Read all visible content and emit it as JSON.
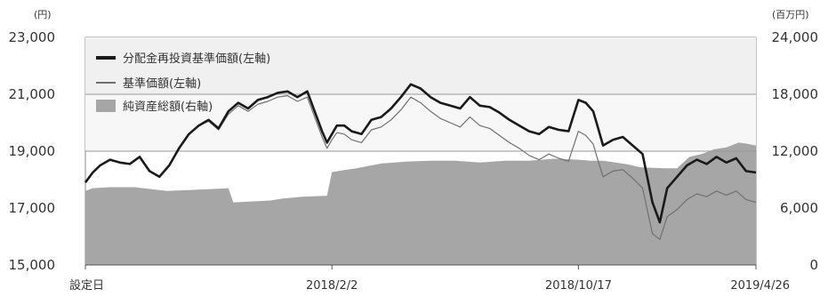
{
  "chart_data": {
    "type": "line",
    "left_axis_unit": "(円)",
    "right_axis_unit": "(百万円)",
    "left_ticks": [
      15000,
      17000,
      19000,
      21000,
      23000
    ],
    "left_tick_labels": [
      "15,000",
      "17,000",
      "19,000",
      "21,000",
      "23,000"
    ],
    "right_ticks": [
      0,
      6000,
      12000,
      18000,
      24000
    ],
    "right_tick_labels": [
      "0",
      "6,000",
      "12,000",
      "18,000",
      "24,000"
    ],
    "ylim_left": [
      15000,
      23000
    ],
    "ylim_right": [
      0,
      24000
    ],
    "x_tick_labels": [
      "設定日",
      "2018/2/2",
      "2018/10/17",
      "2019/4/26"
    ],
    "x_ticks": [
      0,
      100,
      200,
      272
    ],
    "xlim": [
      0,
      272
    ],
    "legend_position": "top-left",
    "series": [
      {
        "name": "分配金再投資基準価額(左軸)",
        "axis": "left",
        "kind": "line",
        "color": "#1a1a1a",
        "x": [
          0,
          3,
          6,
          10,
          14,
          18,
          22,
          26,
          30,
          34,
          38,
          42,
          46,
          50,
          54,
          58,
          62,
          66,
          70,
          74,
          78,
          82,
          86,
          90,
          93,
          96,
          98,
          100,
          102,
          105,
          108,
          112,
          116,
          120,
          124,
          128,
          132,
          136,
          140,
          144,
          148,
          152,
          156,
          160,
          164,
          168,
          172,
          176,
          180,
          184,
          188,
          192,
          196,
          200,
          203,
          206,
          208,
          210,
          214,
          218,
          222,
          226,
          230,
          233,
          236,
          240,
          244,
          248,
          252,
          256,
          260,
          264,
          268,
          272
        ],
        "values": [
          17900,
          18250,
          18500,
          18700,
          18600,
          18550,
          18800,
          18300,
          18100,
          18500,
          19100,
          19600,
          19900,
          20100,
          19800,
          20400,
          20700,
          20500,
          20800,
          20900,
          21050,
          21100,
          20900,
          21100,
          20400,
          19700,
          19300,
          19600,
          19900,
          19900,
          19700,
          19600,
          20100,
          20200,
          20500,
          20900,
          21350,
          21200,
          20900,
          20700,
          20600,
          20500,
          20900,
          20600,
          20550,
          20350,
          20100,
          19900,
          19700,
          19600,
          19850,
          19750,
          19700,
          20800,
          20700,
          20400,
          19800,
          19200,
          19400,
          19500,
          19200,
          18900,
          17200,
          16500,
          17700,
          18100,
          18500,
          18700,
          18550,
          18800,
          18600,
          18750,
          18300,
          18250
        ]
      },
      {
        "name": "基準価額(左軸)",
        "axis": "left",
        "kind": "line",
        "color": "#707070",
        "x": [
          0,
          3,
          6,
          10,
          14,
          18,
          22,
          26,
          30,
          34,
          38,
          42,
          46,
          50,
          54,
          58,
          62,
          66,
          70,
          74,
          78,
          82,
          86,
          90,
          93,
          96,
          98,
          100,
          102,
          105,
          108,
          112,
          116,
          120,
          124,
          128,
          132,
          136,
          140,
          144,
          148,
          152,
          156,
          160,
          164,
          168,
          172,
          176,
          180,
          184,
          188,
          192,
          196,
          200,
          203,
          206,
          208,
          210,
          214,
          218,
          222,
          226,
          230,
          233,
          236,
          240,
          244,
          248,
          252,
          256,
          260,
          264,
          268,
          272
        ],
        "values": [
          17900,
          18250,
          18500,
          18700,
          18600,
          18550,
          18800,
          18300,
          18100,
          18500,
          19100,
          19600,
          19900,
          20050,
          19750,
          20300,
          20600,
          20400,
          20650,
          20750,
          20900,
          20950,
          20750,
          20900,
          20200,
          19500,
          19100,
          19400,
          19650,
          19600,
          19400,
          19300,
          19750,
          19850,
          20100,
          20450,
          20900,
          20700,
          20400,
          20150,
          20000,
          19850,
          20200,
          19900,
          19800,
          19550,
          19300,
          19100,
          18850,
          18700,
          18900,
          18750,
          18650,
          19700,
          19550,
          19250,
          18650,
          18100,
          18300,
          18350,
          18050,
          17700,
          16100,
          15900,
          16700,
          16950,
          17300,
          17500,
          17400,
          17600,
          17450,
          17600,
          17300,
          17200
        ]
      },
      {
        "name": "純資産総額(右軸)",
        "axis": "right",
        "kind": "area",
        "color": "#a6a6a6",
        "x": [
          0,
          3,
          10,
          20,
          30,
          33,
          50,
          58,
          60,
          75,
          80,
          88,
          98,
          100,
          105,
          110,
          120,
          130,
          140,
          150,
          160,
          170,
          180,
          190,
          200,
          205,
          210,
          215,
          220,
          225,
          235,
          240,
          245,
          250,
          255,
          260,
          265,
          268,
          272
        ],
        "values": [
          7800,
          8100,
          8200,
          8200,
          7900,
          7800,
          8000,
          8100,
          6600,
          6800,
          7000,
          7200,
          7300,
          9800,
          10000,
          10200,
          10700,
          10900,
          11000,
          11000,
          10800,
          11000,
          11000,
          11200,
          11100,
          11000,
          11000,
          10800,
          10600,
          10300,
          10200,
          10200,
          11400,
          11700,
          12200,
          12400,
          12900,
          12800,
          12600
        ]
      }
    ],
    "gridlines_left": [
      19000,
      21000
    ]
  }
}
